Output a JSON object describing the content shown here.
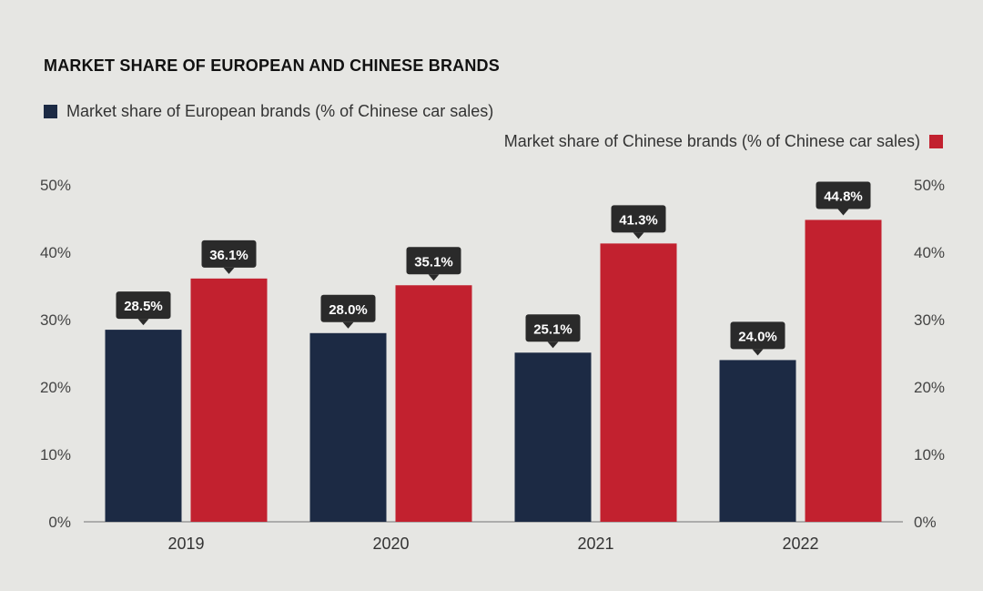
{
  "chart_data": {
    "type": "bar",
    "title": "MARKET SHARE OF EUROPEAN AND CHINESE BRANDS",
    "categories": [
      "2019",
      "2020",
      "2021",
      "2022"
    ],
    "series": [
      {
        "name": "Market share of European brands (% of Chinese car sales)",
        "values": [
          28.5,
          28.0,
          25.1,
          24.0
        ],
        "labels": [
          "28.5%",
          "28.0%",
          "25.1%",
          "24.0%"
        ],
        "color": "#1c2a44",
        "legend_position": "top-left"
      },
      {
        "name": "Market share of Chinese brands (% of Chinese car sales)",
        "values": [
          36.1,
          35.1,
          41.3,
          44.8
        ],
        "labels": [
          "36.1%",
          "35.1%",
          "41.3%",
          "44.8%"
        ],
        "color": "#c2212f",
        "legend_position": "top-right"
      }
    ],
    "y_ticks": [
      "0%",
      "10%",
      "20%",
      "30%",
      "40%",
      "50%"
    ],
    "ylim": [
      0,
      50
    ],
    "y_axis_left": true,
    "y_axis_right": true,
    "xlabel": "",
    "ylabel": ""
  },
  "colors": {
    "background": "#e6e6e3",
    "label_box": "#2a2a2a",
    "label_text": "#ffffff",
    "axis_line": "#9a9a9a"
  }
}
